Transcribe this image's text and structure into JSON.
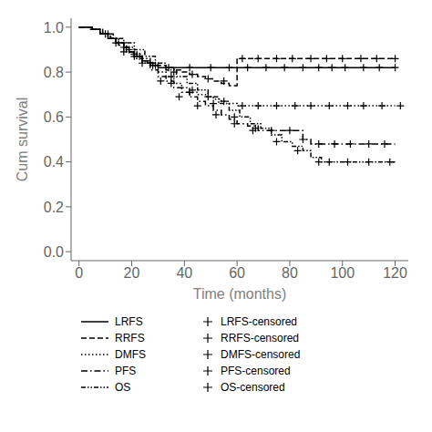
{
  "chart_data": {
    "type": "step",
    "xlabel": "Time (months)",
    "ylabel": "Cum survival",
    "xlim": [
      -3,
      125
    ],
    "ylim": [
      -0.04,
      1.04
    ],
    "xticks": [
      0,
      20,
      40,
      60,
      80,
      100,
      120
    ],
    "yticks": [
      {
        "value": 0.0,
        "label": "0.0"
      },
      0.2,
      0.4,
      0.6,
      0.8,
      {
        "value": 1.0,
        "label": "1.0"
      }
    ],
    "grid": false,
    "legend": "bottom",
    "series": [
      {
        "name": "LRFS",
        "color": "#000000",
        "line_style": "solid",
        "x": [
          0,
          5,
          8,
          11,
          14,
          17,
          19,
          21,
          24,
          26,
          28,
          30,
          90,
          120
        ],
        "values": [
          1.0,
          0.99,
          0.97,
          0.95,
          0.93,
          0.91,
          0.89,
          0.87,
          0.85,
          0.84,
          0.83,
          0.82,
          0.82,
          0.82
        ],
        "censored": {
          "name": "LRFS-censored",
          "marker": "plus",
          "x": [
            21,
            27,
            34,
            42,
            50,
            57,
            64,
            71,
            78,
            85,
            91,
            96,
            101,
            108,
            114,
            120
          ],
          "values": [
            0.87,
            0.84,
            0.82,
            0.82,
            0.82,
            0.82,
            0.82,
            0.82,
            0.82,
            0.82,
            0.82,
            0.82,
            0.82,
            0.82,
            0.82,
            0.82
          ]
        }
      },
      {
        "name": "RRFS",
        "color": "#000000",
        "line_style": "dashed",
        "x": [
          0,
          5,
          8,
          11,
          14,
          17,
          19,
          22,
          24,
          27,
          30,
          33,
          36,
          39,
          42,
          45,
          48,
          51,
          54,
          57,
          60,
          88,
          120
        ],
        "values": [
          1.0,
          0.99,
          0.97,
          0.95,
          0.93,
          0.91,
          0.89,
          0.87,
          0.85,
          0.84,
          0.83,
          0.82,
          0.81,
          0.8,
          0.79,
          0.78,
          0.77,
          0.76,
          0.75,
          0.74,
          0.86,
          0.86,
          0.86
        ],
        "censored": {
          "name": "RRFS-censored",
          "marker": "plus",
          "x": [
            17,
            23,
            29,
            36,
            43,
            49,
            55,
            62,
            68,
            75,
            81,
            88,
            94,
            100,
            107,
            113,
            120
          ],
          "values": [
            0.91,
            0.87,
            0.83,
            0.8,
            0.79,
            0.77,
            0.76,
            0.86,
            0.86,
            0.86,
            0.86,
            0.86,
            0.86,
            0.86,
            0.86,
            0.86,
            0.86
          ]
        }
      },
      {
        "name": "DMFS",
        "color": "#000000",
        "line_style": "dotted",
        "x": [
          0,
          5,
          8,
          12,
          15,
          18,
          21,
          24,
          27,
          30,
          33,
          36,
          39,
          42,
          45,
          48,
          51,
          54,
          57,
          60,
          63,
          120
        ],
        "values": [
          1.0,
          0.99,
          0.97,
          0.95,
          0.93,
          0.91,
          0.88,
          0.86,
          0.83,
          0.8,
          0.78,
          0.75,
          0.73,
          0.71,
          0.7,
          0.69,
          0.68,
          0.67,
          0.66,
          0.65,
          0.65,
          0.65
        ],
        "censored": {
          "name": "DMFS-censored",
          "marker": "plus",
          "x": [
            14,
            21,
            28,
            35,
            42,
            49,
            55,
            62,
            68,
            75,
            82,
            88,
            95,
            102,
            108,
            115,
            122
          ],
          "values": [
            0.93,
            0.88,
            0.83,
            0.75,
            0.71,
            0.69,
            0.67,
            0.65,
            0.65,
            0.65,
            0.65,
            0.65,
            0.65,
            0.65,
            0.65,
            0.65,
            0.65
          ]
        }
      },
      {
        "name": "PFS",
        "color": "#000000",
        "line_style": "dashdot",
        "x": [
          0,
          4,
          8,
          12,
          15,
          18,
          21,
          24,
          27,
          30,
          33,
          36,
          39,
          42,
          45,
          48,
          51,
          54,
          57,
          60,
          64,
          68,
          72,
          80,
          85,
          88,
          92,
          120
        ],
        "values": [
          1.0,
          0.99,
          0.97,
          0.95,
          0.92,
          0.89,
          0.86,
          0.84,
          0.81,
          0.78,
          0.76,
          0.73,
          0.71,
          0.69,
          0.67,
          0.65,
          0.63,
          0.61,
          0.59,
          0.57,
          0.56,
          0.54,
          0.54,
          0.54,
          0.5,
          0.48,
          0.48,
          0.48
        ],
        "censored": {
          "name": "PFS-censored",
          "marker": "plus",
          "x": [
            10,
            17,
            24,
            31,
            38,
            45,
            52,
            59,
            66,
            73,
            80,
            85,
            91,
            97,
            103,
            110,
            116
          ],
          "values": [
            0.97,
            0.89,
            0.84,
            0.76,
            0.69,
            0.65,
            0.61,
            0.57,
            0.54,
            0.54,
            0.54,
            0.5,
            0.48,
            0.48,
            0.48,
            0.48,
            0.48
          ]
        }
      },
      {
        "name": "OS",
        "color": "#000000",
        "line_style": "dashdotdot",
        "x": [
          0,
          5,
          9,
          13,
          17,
          21,
          25,
          29,
          33,
          37,
          41,
          45,
          49,
          53,
          57,
          61,
          65,
          69,
          73,
          77,
          81,
          85,
          88,
          92,
          95,
          120
        ],
        "values": [
          1.0,
          0.99,
          0.97,
          0.95,
          0.93,
          0.9,
          0.87,
          0.84,
          0.81,
          0.78,
          0.75,
          0.72,
          0.69,
          0.66,
          0.63,
          0.6,
          0.57,
          0.55,
          0.52,
          0.49,
          0.47,
          0.45,
          0.42,
          0.4,
          0.4,
          0.4
        ],
        "censored": {
          "name": "OS-censored",
          "marker": "plus",
          "x": [
            11,
            19,
            27,
            35,
            43,
            51,
            59,
            67,
            75,
            83,
            91,
            95,
            102,
            110,
            118
          ],
          "values": [
            0.97,
            0.9,
            0.84,
            0.78,
            0.72,
            0.66,
            0.6,
            0.55,
            0.49,
            0.45,
            0.4,
            0.4,
            0.4,
            0.4,
            0.4
          ]
        }
      }
    ]
  }
}
